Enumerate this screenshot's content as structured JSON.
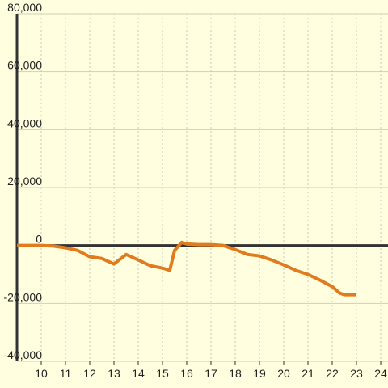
{
  "chart_data": {
    "type": "line",
    "x": [
      9,
      10,
      10.5,
      11,
      11.5,
      12,
      12.5,
      13,
      13.5,
      14,
      14.5,
      15,
      15.3,
      15.5,
      15.8,
      16,
      16.5,
      17,
      17.5,
      18,
      18.5,
      19,
      19.5,
      20,
      20.5,
      21,
      21.5,
      22,
      22.3,
      22.5,
      23
    ],
    "series": [
      {
        "color": "#e07b20",
        "values": [
          0,
          0,
          -200,
          -800,
          -1700,
          -3900,
          -4500,
          -6400,
          -3100,
          -5000,
          -7000,
          -7800,
          -8600,
          -1700,
          1100,
          500,
          300,
          300,
          0,
          -1400,
          -3100,
          -3600,
          -5000,
          -6700,
          -8600,
          -10000,
          -12000,
          -14200,
          -16400,
          -17000,
          -17000
        ]
      }
    ],
    "xlim": [
      9,
      24.3
    ],
    "xticks": [
      10,
      11,
      12,
      13,
      14,
      15,
      16,
      17,
      18,
      19,
      20,
      21,
      22,
      23,
      24
    ],
    "ylim": [
      -40000,
      80000
    ],
    "yticks": [
      {
        "value": -40000,
        "label": "-40,000"
      },
      {
        "value": -20000,
        "label": "-20,000"
      },
      0,
      {
        "value": 20000,
        "label": "20,000"
      },
      {
        "value": 40000,
        "label": "40,000"
      },
      {
        "value": 60000,
        "label": "60,000"
      },
      {
        "value": 80000,
        "label": "80,000"
      }
    ],
    "grid": true
  }
}
